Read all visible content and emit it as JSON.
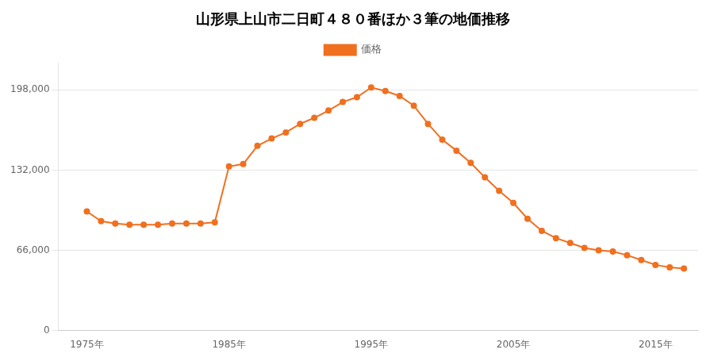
{
  "chart_data": {
    "type": "line",
    "title": "山形県上山市二日町４８０番ほか３筆の地価推移",
    "x": [
      1975,
      1976,
      1977,
      1978,
      1979,
      1980,
      1981,
      1982,
      1983,
      1984,
      1985,
      1986,
      1987,
      1988,
      1989,
      1990,
      1991,
      1992,
      1993,
      1994,
      1995,
      1996,
      1997,
      1998,
      1999,
      2000,
      2001,
      2002,
      2003,
      2004,
      2005,
      2006,
      2007,
      2008,
      2009,
      2010,
      2011,
      2012,
      2013,
      2014,
      2015,
      2016,
      2017
    ],
    "series": [
      {
        "name": "価格",
        "color": "#f07020",
        "marker": "circle",
        "line_style": "solid",
        "values": [
          98000,
          90000,
          88000,
          87000,
          87000,
          87000,
          88000,
          88000,
          88000,
          89000,
          135000,
          137000,
          152000,
          158000,
          163000,
          170000,
          175000,
          181000,
          188000,
          192000,
          200000,
          197000,
          193000,
          185000,
          170000,
          157000,
          148000,
          138000,
          126000,
          115000,
          105000,
          92000,
          82000,
          76000,
          72000,
          68000,
          66000,
          65000,
          62000,
          58000,
          54000,
          52000,
          51000
        ]
      }
    ],
    "xlim": [
      1973,
      2018
    ],
    "xticks": [
      {
        "value": 1975,
        "label": "1975年"
      },
      {
        "value": 1985,
        "label": "1985年"
      },
      {
        "value": 1995,
        "label": "1995年"
      },
      {
        "value": 2005,
        "label": "2005年"
      },
      {
        "value": 2015,
        "label": "2015年"
      }
    ],
    "ylim": [
      0,
      220000
    ],
    "yticks": [
      0,
      {
        "value": 66000,
        "label": "66,000"
      },
      {
        "value": 132000,
        "label": "132,000"
      },
      {
        "value": 198000,
        "label": "198,000"
      }
    ],
    "grid": "y",
    "legend": "top"
  }
}
